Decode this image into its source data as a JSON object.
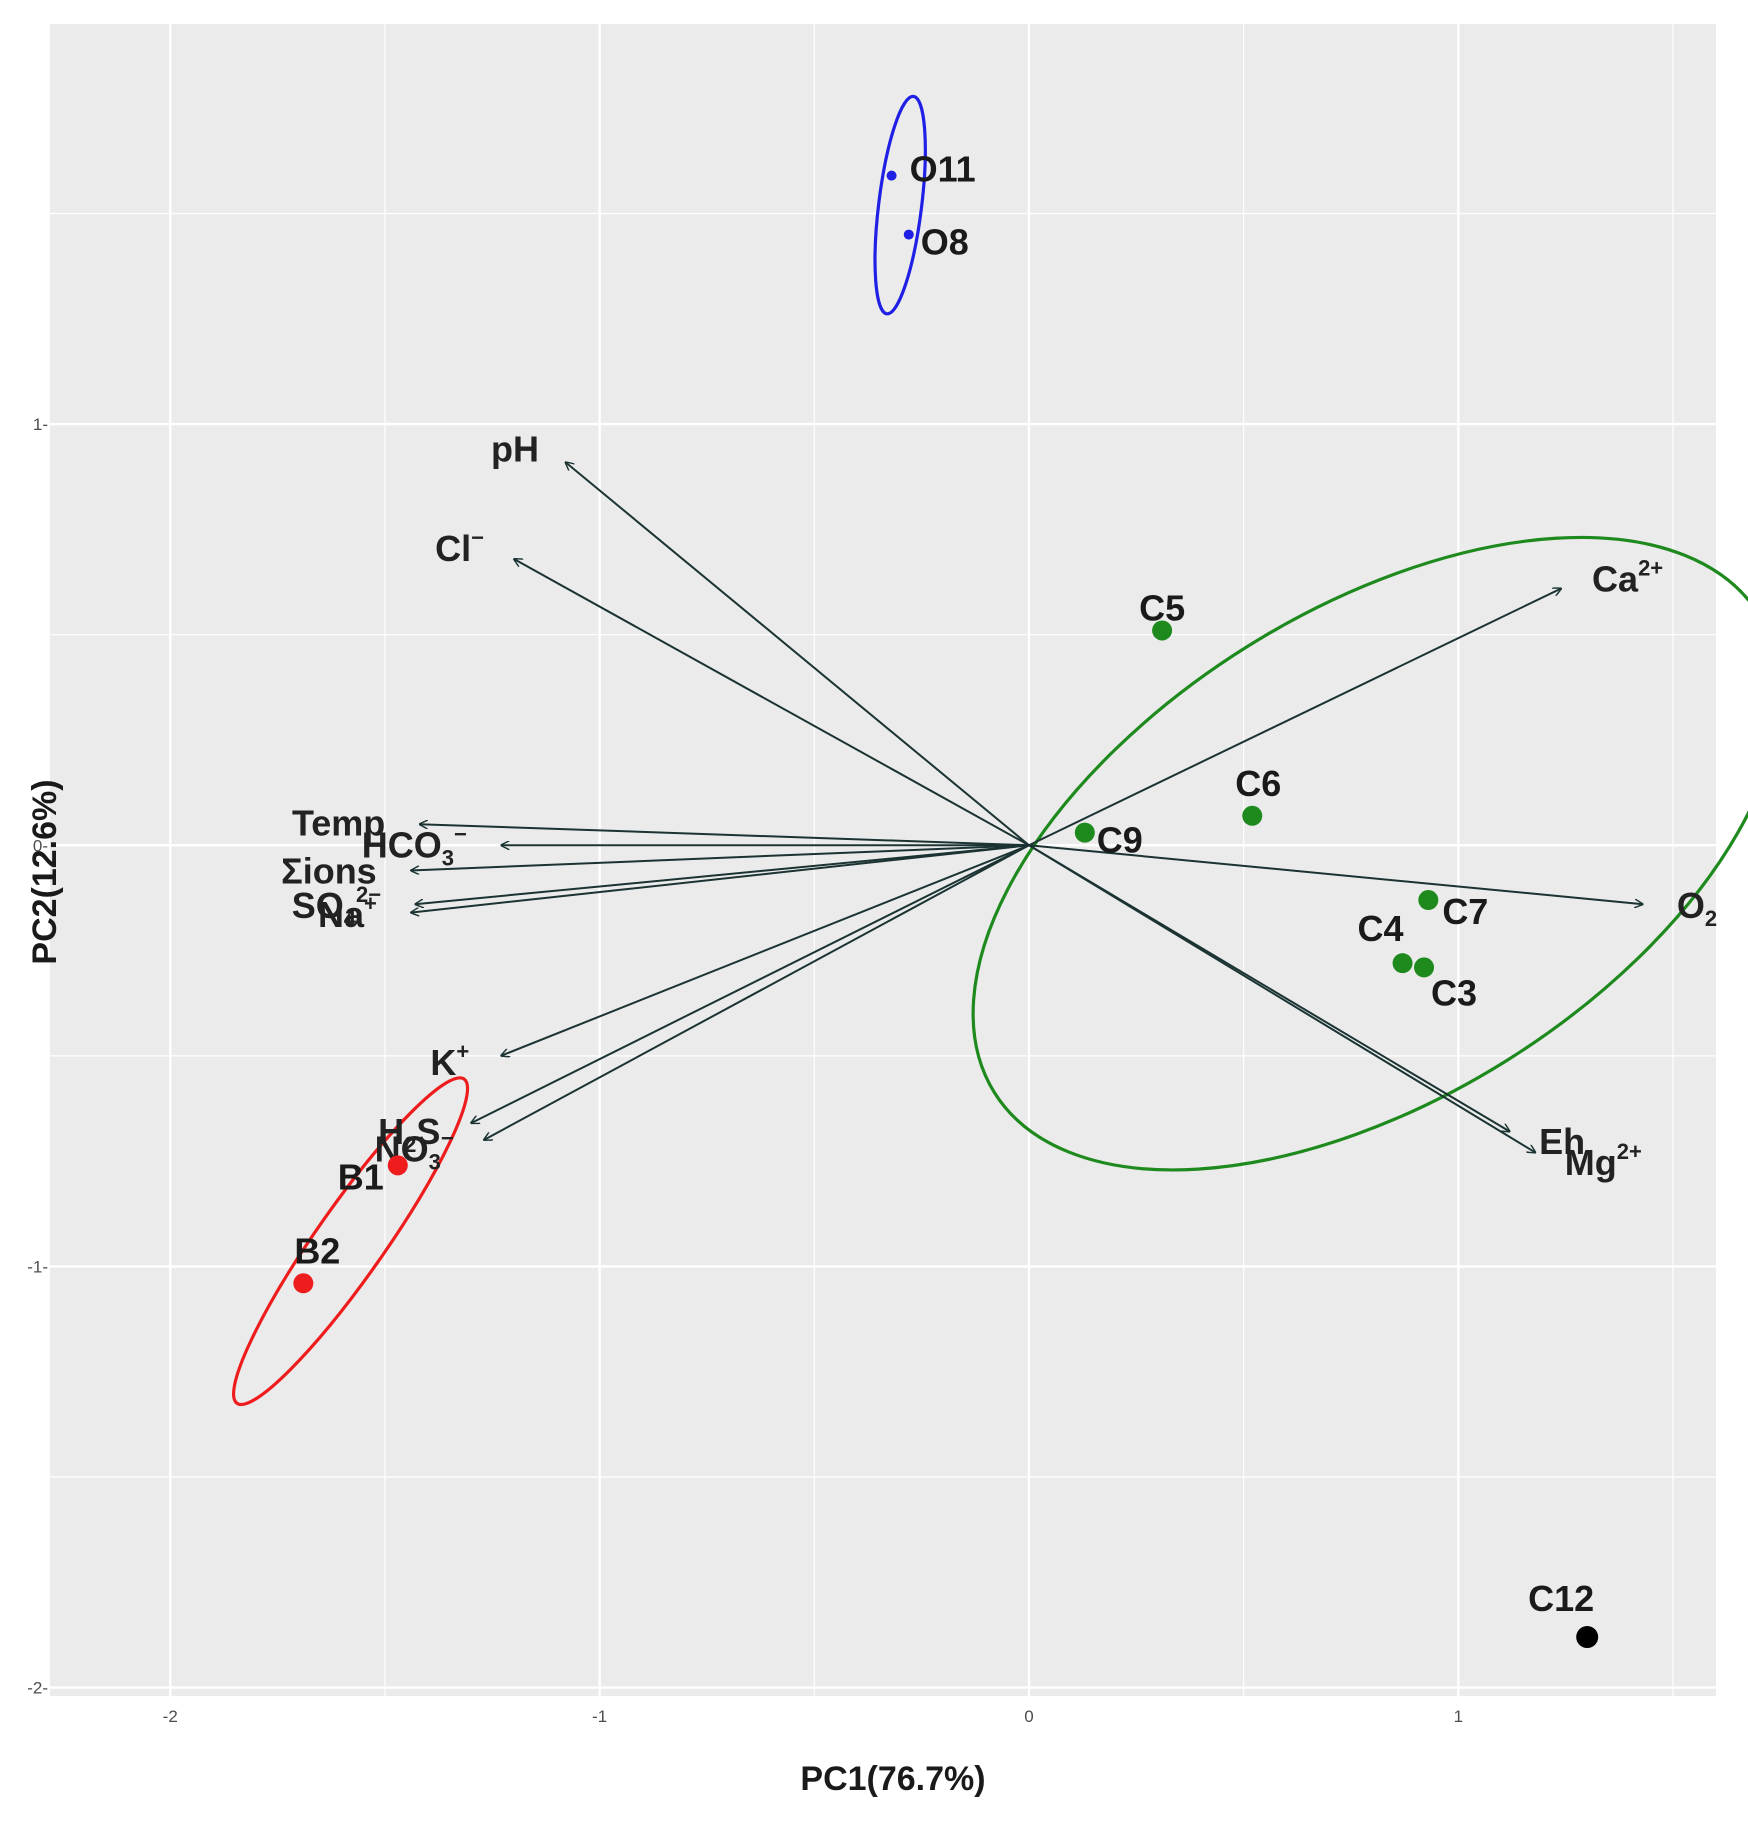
{
  "chart_data": {
    "type": "scatter",
    "subtype": "pca-biplot",
    "title": "",
    "xlabel": "PC1(76.7%)",
    "ylabel": "PC2(12.6%)",
    "xlim": [
      -2.28,
      1.6
    ],
    "ylim": [
      -2.02,
      1.95
    ],
    "xticks": [
      -2,
      -1,
      0,
      1
    ],
    "xtick_labels": [
      "-2",
      "-1",
      "0",
      "1"
    ],
    "yticks": [
      -2,
      -1,
      0,
      1
    ],
    "ytick_labels": [
      "-2-",
      "-1-",
      "0-",
      "1-"
    ],
    "grid": true,
    "colors": {
      "panel": "#ebebeb",
      "grid": "#ffffff",
      "arrow": "#1b3333",
      "group_C": "#1e8a1e",
      "group_O": "#1f1fe6",
      "group_B": "#ee1c1c",
      "group_C12": "#000000"
    },
    "samples": [
      {
        "label": "O11",
        "x": -0.32,
        "y": 1.59,
        "group": "O"
      },
      {
        "label": "O8",
        "x": -0.28,
        "y": 1.45,
        "group": "O"
      },
      {
        "label": "C5",
        "x": 0.31,
        "y": 0.51,
        "group": "C"
      },
      {
        "label": "C6",
        "x": 0.52,
        "y": 0.07,
        "group": "C"
      },
      {
        "label": "C9",
        "x": 0.13,
        "y": 0.03,
        "group": "C"
      },
      {
        "label": "C7",
        "x": 0.93,
        "y": -0.13,
        "group": "C"
      },
      {
        "label": "C4",
        "x": 0.87,
        "y": -0.28,
        "group": "C"
      },
      {
        "label": "C3",
        "x": 0.92,
        "y": -0.29,
        "group": "C"
      },
      {
        "label": "B1",
        "x": -1.47,
        "y": -0.76,
        "group": "B"
      },
      {
        "label": "B2",
        "x": -1.69,
        "y": -1.04,
        "group": "B"
      },
      {
        "label": "C12",
        "x": 1.3,
        "y": -1.88,
        "group": "C12"
      }
    ],
    "variables": [
      {
        "name": "pH",
        "x": -1.08,
        "y": 0.91
      },
      {
        "name": "Cl",
        "charge": "−",
        "x": -1.2,
        "y": 0.68
      },
      {
        "name": "Ca",
        "charge": "2+",
        "x": 1.24,
        "y": 0.61
      },
      {
        "name": "Temp",
        "x": -1.42,
        "y": 0.05
      },
      {
        "name": "HCO",
        "sub": "3",
        "charge": "−",
        "x": -1.23,
        "y": 0.0
      },
      {
        "name": "Σions",
        "x": -1.44,
        "y": -0.06
      },
      {
        "name": "SO",
        "sub": "4",
        "charge": "2−",
        "x": -1.43,
        "y": -0.14
      },
      {
        "name": "Na",
        "charge": "+",
        "x": -1.44,
        "y": -0.16
      },
      {
        "name": "O",
        "sub": "2",
        "x": 1.43,
        "y": -0.14
      },
      {
        "name": "K",
        "charge": "+",
        "x": -1.23,
        "y": -0.5
      },
      {
        "name": "H",
        "sub": "2",
        "tail": "S",
        "x": -1.3,
        "y": -0.66
      },
      {
        "name": "NO",
        "sub": "3",
        "charge": "−",
        "x": -1.27,
        "y": -0.7
      },
      {
        "name": "Eh",
        "x": 1.12,
        "y": -0.68
      },
      {
        "name": "Mg",
        "charge": "2+",
        "x": 1.18,
        "y": -0.73
      }
    ],
    "ellipses": [
      {
        "group": "O",
        "cx": -0.3,
        "cy": 1.52,
        "rx": 0.05,
        "ry": 0.26,
        "angle_deg": 7
      },
      {
        "group": "C",
        "cx": 0.81,
        "cy": -0.02,
        "rx": 1.05,
        "ry": 0.58,
        "angle_deg": -32
      },
      {
        "group": "B",
        "cx": -1.58,
        "cy": -0.94,
        "rx": 0.08,
        "ry": 0.47,
        "angle_deg": 35
      }
    ]
  }
}
